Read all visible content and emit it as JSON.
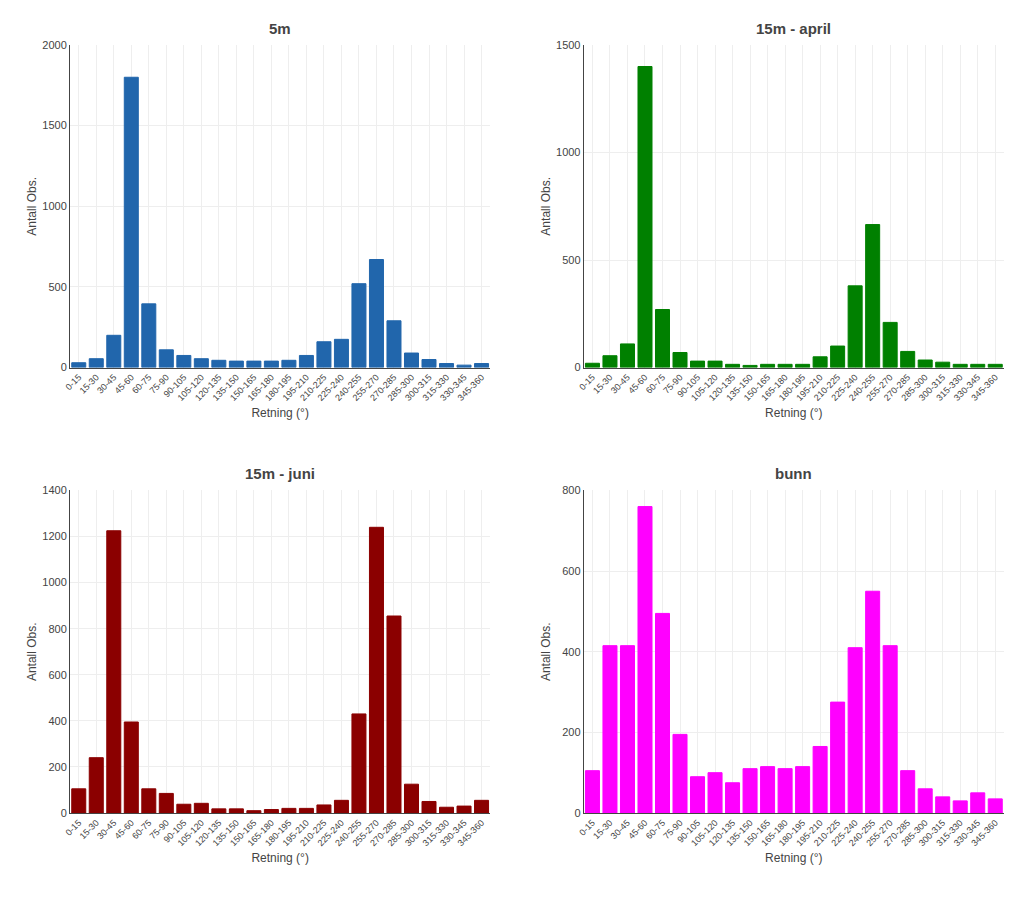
{
  "chart_data": [
    {
      "type": "bar",
      "title": "5m",
      "categories": [
        "0-15",
        "15-30",
        "30-45",
        "45-60",
        "60-75",
        "75-90",
        "90-105",
        "105-120",
        "120-135",
        "135-150",
        "150-165",
        "165-180",
        "180-195",
        "195-210",
        "210-225",
        "225-240",
        "240-255",
        "255-270",
        "270-285",
        "285-300",
        "300-315",
        "315-330",
        "330-345",
        "345-360"
      ],
      "values": [
        30,
        55,
        200,
        1800,
        395,
        110,
        75,
        55,
        45,
        40,
        40,
        40,
        45,
        75,
        160,
        175,
        520,
        670,
        290,
        90,
        50,
        25,
        15,
        25
      ],
      "color": "#2166AC",
      "ylim": [
        0,
        2000
      ],
      "yticks": [
        0,
        500,
        1000,
        1500,
        2000
      ],
      "xlabel": "Retning (°)",
      "ylabel": "Antall Obs.",
      "grid": true
    },
    {
      "type": "bar",
      "title": "15m - april",
      "categories": [
        "0-15",
        "15-30",
        "30-45",
        "45-60",
        "60-75",
        "75-90",
        "90-105",
        "105-120",
        "120-135",
        "135-150",
        "150-165",
        "165-180",
        "180-195",
        "195-210",
        "210-225",
        "225-240",
        "240-255",
        "255-270",
        "270-285",
        "285-300",
        "300-315",
        "315-330",
        "330-345",
        "345-360"
      ],
      "values": [
        20,
        55,
        110,
        1400,
        270,
        70,
        30,
        30,
        15,
        10,
        15,
        15,
        15,
        50,
        100,
        380,
        665,
        210,
        75,
        35,
        25,
        15,
        15,
        15
      ],
      "color": "#008000",
      "ylim": [
        0,
        1500
      ],
      "yticks": [
        0,
        500,
        1000,
        1500
      ],
      "xlabel": "Retning (°)",
      "ylabel": "Antall Obs.",
      "grid": true
    },
    {
      "type": "bar",
      "title": "15m - juni",
      "categories": [
        "0-15",
        "15-30",
        "30-45",
        "45-60",
        "60-75",
        "75-90",
        "90-105",
        "105-120",
        "120-135",
        "135-150",
        "150-165",
        "165-180",
        "180-195",
        "195-210",
        "210-225",
        "225-240",
        "240-255",
        "255-270",
        "270-285",
        "285-300",
        "300-315",
        "315-330",
        "330-345",
        "345-360"
      ],
      "values": [
        105,
        240,
        1225,
        395,
        105,
        85,
        38,
        42,
        18,
        18,
        10,
        15,
        20,
        20,
        35,
        55,
        430,
        1240,
        855,
        125,
        50,
        25,
        30,
        55
      ],
      "color": "#8B0000",
      "ylim": [
        0,
        1400
      ],
      "yticks": [
        0,
        200,
        400,
        600,
        800,
        1000,
        1200,
        1400
      ],
      "xlabel": "Retning (°)",
      "ylabel": "Antall Obs.",
      "grid": true
    },
    {
      "type": "bar",
      "title": "bunn",
      "categories": [
        "0-15",
        "15-30",
        "30-45",
        "45-60",
        "60-75",
        "75-90",
        "90-105",
        "105-120",
        "120-135",
        "135-150",
        "150-165",
        "165-180",
        "180-195",
        "195-210",
        "210-225",
        "225-240",
        "240-255",
        "255-270",
        "270-285",
        "285-300",
        "300-315",
        "315-330",
        "330-345",
        "345-360"
      ],
      "values": [
        105,
        415,
        415,
        760,
        495,
        195,
        90,
        100,
        75,
        110,
        115,
        110,
        115,
        165,
        275,
        410,
        550,
        415,
        105,
        60,
        40,
        30,
        50,
        35
      ],
      "color": "#FF00FF",
      "ylim": [
        0,
        800
      ],
      "yticks": [
        0,
        200,
        400,
        600,
        800
      ],
      "xlabel": "Retning (°)",
      "ylabel": "Antall Obs.",
      "grid": true
    }
  ]
}
